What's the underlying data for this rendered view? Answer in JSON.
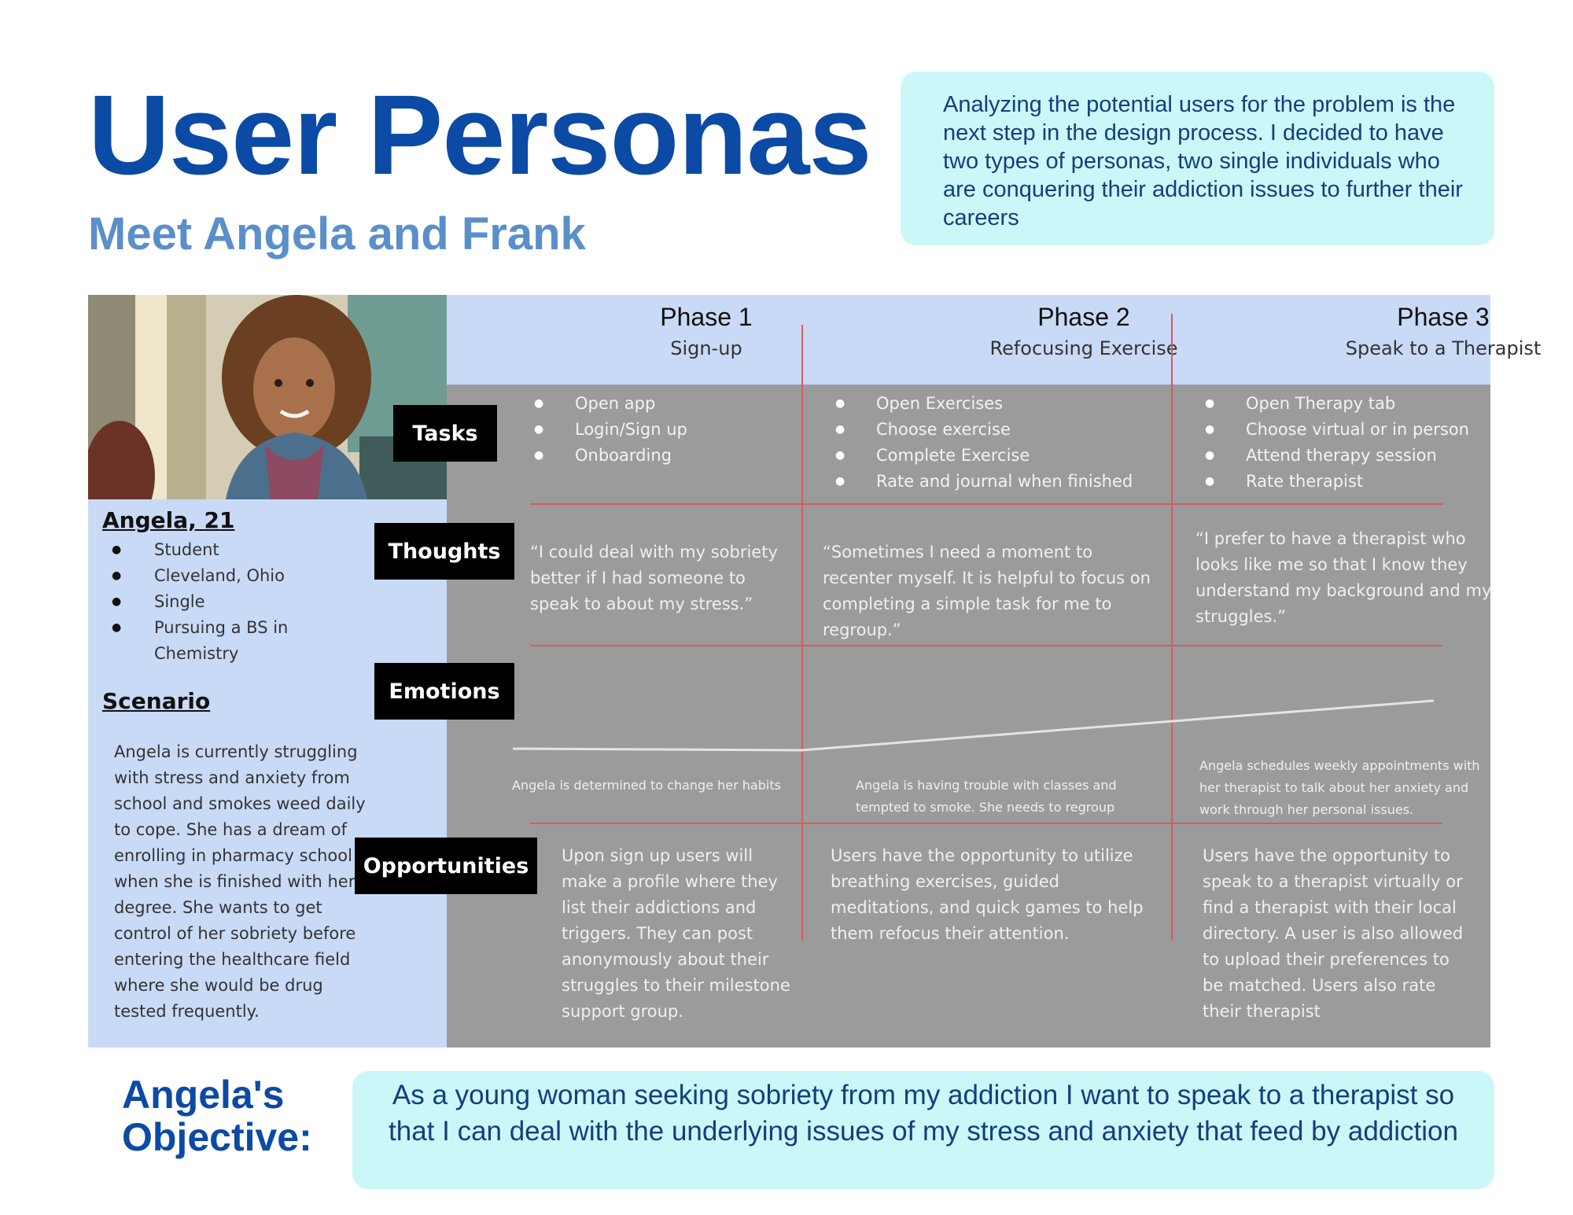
{
  "header": {
    "title": "User Personas",
    "subtitle": "Meet Angela and Frank",
    "intro": "Analyzing the potential users  for the problem is the next step in the design process. I decided to have two types of personas, two single individuals who are conquering their addiction issues to further their careers"
  },
  "persona": {
    "name": "Angela, 21",
    "facts": [
      "Student",
      "Cleveland, Ohio",
      "Single",
      "Pursuing a BS in Chemistry"
    ],
    "scenario_heading": "Scenario",
    "scenario": "Angela is currently struggling with stress and anxiety from school and smokes weed daily to cope. She has a dream of enrolling in pharmacy school when she is finished with her degree. She wants to get control of her sobriety before entering the healthcare field where she would be drug tested frequently."
  },
  "row_labels": {
    "tasks": "Tasks",
    "thoughts": "Thoughts",
    "emotions": "Emotions",
    "opportunities": "Opportunities"
  },
  "phases": [
    {
      "title": "Phase 1",
      "subtitle": "Sign-up",
      "tasks": [
        "Open app",
        "Login/Sign up",
        "Onboarding"
      ],
      "thought": "“I could deal with my sobriety better if I had someone to speak to about my stress.”",
      "emotion": "Angela is determined to change her habits",
      "opportunity": "Upon sign up users will make a profile where they list their addictions and triggers. They can post anonymously about their struggles to their milestone support group."
    },
    {
      "title": "Phase 2",
      "subtitle": "Refocusing Exercise",
      "tasks": [
        "Open Exercises",
        "Choose exercise",
        "Complete Exercise",
        "Rate and journal when finished"
      ],
      "thought": "“Sometimes I need a moment to recenter myself. It is helpful to focus on completing a simple task for me to regroup.”",
      "emotion": "Angela is having trouble with classes and tempted to smoke. She needs to regroup",
      "opportunity": "Users have the opportunity to utilize breathing exercises, guided meditations, and quick games to help them refocus their attention."
    },
    {
      "title": "Phase 3",
      "subtitle": "Speak to a Therapist",
      "tasks": [
        "Open Therapy tab",
        "Choose virtual or in person",
        "Attend therapy session",
        "Rate therapist"
      ],
      "thought": "“I prefer to have a therapist who looks like me so that I know they understand my background and my struggles.”",
      "emotion": "Angela schedules weekly  appointments with her therapist to talk about her anxiety and work through her personal issues.",
      "opportunity": "Users have the opportunity to speak to a therapist virtually or find a therapist with their local directory. A user is also allowed to upload their preferences to be matched. Users also rate their therapist"
    }
  ],
  "objective": {
    "heading_line1": "Angela's",
    "heading_line2": "Objective:",
    "text": "As a young woman seeking sobriety from my addiction I want to speak to a therapist so that I can deal with the underlying issues of my stress and anxiety that feed by addiction"
  },
  "colors": {
    "title_blue": "#0b4aa5",
    "subtitle_blue": "#5a8fc9",
    "callout_bg": "#cbf7f8",
    "panel_blue": "#c9daf7",
    "board_gray": "#9b9b9b",
    "divider_red": "#d95a5a"
  }
}
